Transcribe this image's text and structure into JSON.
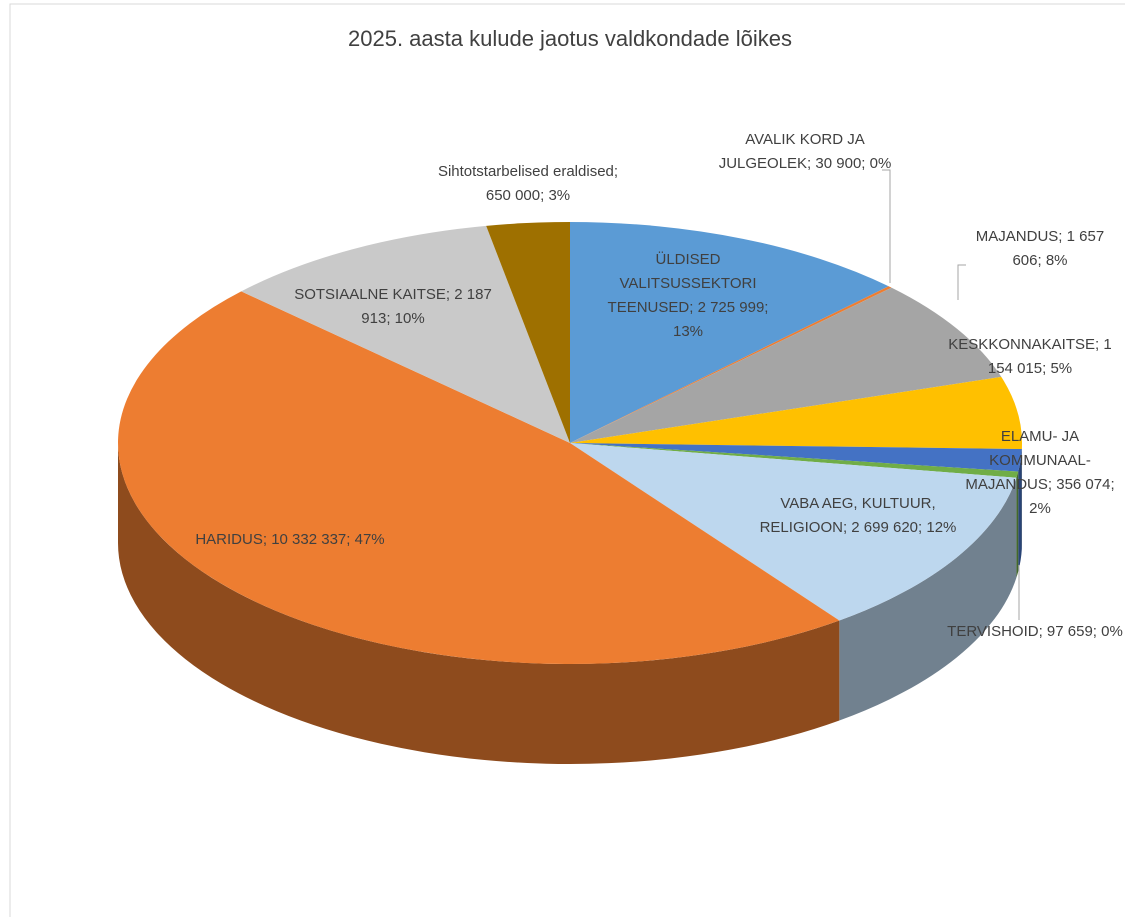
{
  "chart_data": {
    "type": "pie",
    "title": "2025. aasta kulude jaotus valdkondade lõikes",
    "categories": [
      "ÜLDISED VALITSUSSEKTORI TEENUSED;",
      "AVALIK KORD JA JULGEOLEK;",
      "MAJANDUS;",
      "KESKKONNAKAITSE;",
      "ELAMU- JA KOMMUNAAL-MAJANDUS;",
      "TERVISHOID;",
      "VABA AEG, KULTUUR, RELIGIOON;",
      "HARIDUS;",
      "SOTSIAALNE KAITSE;",
      "Sihtotstarbelised eraldised;"
    ],
    "values": [
      2725999,
      30900,
      1657606,
      1154015,
      356074,
      97659,
      2699620,
      10332337,
      2187913,
      650000
    ],
    "value_labels": [
      "2 725 999;",
      "30 900;",
      "1 657 606;",
      "1 154 015;",
      "356 074;",
      "97 659;",
      "2 699 620;",
      "10 332 337;",
      "2 187 913;",
      "650 000;"
    ],
    "percent_labels": [
      "13%",
      "0%",
      "8%",
      "5%",
      "2%",
      "0%",
      "12%",
      "47%",
      "10%",
      "3%"
    ],
    "colors": [
      "#5b9bd5",
      "#ed7d31",
      "#a5a5a5",
      "#ffc000",
      "#4472c4",
      "#70ad47",
      "#bdd7ee",
      "#ed7d31",
      "#c9c9c9",
      "#9e7000"
    ]
  }
}
